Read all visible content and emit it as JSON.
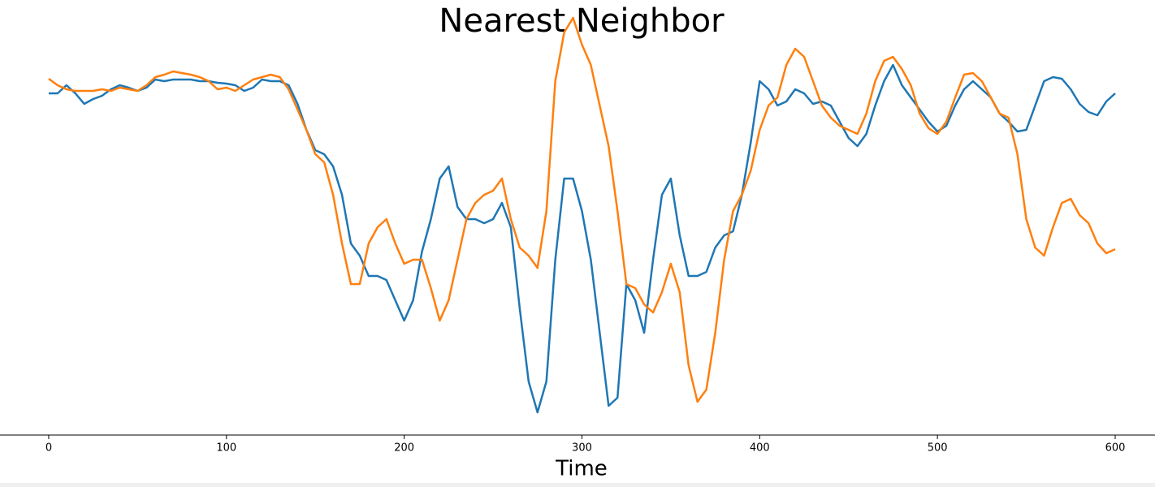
{
  "chart_data": {
    "type": "line",
    "title": "Nearest Neighbor",
    "x_label": "Time",
    "x": [
      0,
      5,
      10,
      15,
      20,
      25,
      30,
      35,
      40,
      45,
      50,
      55,
      60,
      65,
      70,
      75,
      80,
      85,
      90,
      95,
      100,
      105,
      110,
      115,
      120,
      125,
      130,
      135,
      140,
      145,
      150,
      155,
      160,
      165,
      170,
      175,
      180,
      185,
      190,
      195,
      200,
      205,
      210,
      215,
      220,
      225,
      230,
      235,
      240,
      245,
      250,
      255,
      260,
      265,
      270,
      275,
      280,
      285,
      290,
      295,
      300,
      305,
      310,
      315,
      320,
      325,
      330,
      335,
      340,
      345,
      350,
      355,
      360,
      365,
      370,
      375,
      380,
      385,
      390,
      395,
      400,
      405,
      410,
      415,
      420,
      425,
      430,
      435,
      440,
      445,
      450,
      455,
      460,
      465,
      470,
      475,
      480,
      485,
      490,
      495,
      500,
      505,
      510,
      515,
      520,
      525,
      530,
      535,
      540,
      545,
      550,
      555,
      560,
      565,
      570,
      575,
      580,
      585,
      590,
      595,
      600
    ],
    "series": [
      {
        "color": "#1f77b4",
        "values": [
          421,
          421,
          431,
          421,
          408,
          414,
          418,
          426,
          431,
          428,
          424,
          428,
          438,
          436,
          438,
          438,
          438,
          436,
          436,
          434,
          433,
          431,
          424,
          428,
          438,
          436,
          436,
          431,
          408,
          376,
          351,
          346,
          331,
          296,
          236,
          221,
          196,
          196,
          191,
          166,
          141,
          166,
          226,
          266,
          316,
          331,
          281,
          266,
          266,
          261,
          266,
          286,
          256,
          156,
          66,
          28,
          66,
          216,
          316,
          316,
          276,
          216,
          126,
          36,
          46,
          186,
          166,
          126,
          216,
          296,
          316,
          246,
          196,
          196,
          201,
          231,
          246,
          251,
          296,
          361,
          436,
          426,
          406,
          411,
          426,
          421,
          408,
          411,
          406,
          386,
          366,
          356,
          371,
          406,
          436,
          456,
          431,
          416,
          401,
          386,
          374,
          381,
          406,
          426,
          436,
          426,
          416,
          396,
          386,
          374,
          376,
          406,
          436,
          441,
          439,
          426,
          408,
          398,
          394,
          411,
          421
        ]
      },
      {
        "color": "#ff7f0e",
        "values": [
          439,
          431,
          426,
          424,
          424,
          424,
          426,
          424,
          428,
          426,
          424,
          431,
          441,
          444,
          448,
          446,
          444,
          441,
          436,
          426,
          428,
          424,
          431,
          438,
          441,
          444,
          441,
          426,
          401,
          376,
          346,
          336,
          296,
          236,
          186,
          186,
          236,
          256,
          266,
          236,
          211,
          216,
          216,
          181,
          141,
          166,
          216,
          266,
          286,
          296,
          301,
          316,
          266,
          231,
          221,
          206,
          276,
          436,
          496,
          514,
          481,
          456,
          406,
          356,
          276,
          186,
          181,
          161,
          151,
          176,
          211,
          176,
          86,
          41,
          56,
          126,
          216,
          276,
          296,
          326,
          376,
          406,
          416,
          456,
          476,
          466,
          436,
          406,
          391,
          381,
          376,
          371,
          396,
          436,
          461,
          466,
          451,
          431,
          396,
          378,
          371,
          386,
          416,
          444,
          446,
          436,
          416,
          396,
          391,
          346,
          266,
          231,
          221,
          256,
          286,
          291,
          271,
          261,
          236,
          224,
          229
        ]
      }
    ],
    "xlim": [
      -27.4,
      622.4
    ],
    "ylim": [
      0,
      525
    ],
    "xticks": [
      0,
      100,
      200,
      300,
      400,
      500,
      600
    ]
  }
}
